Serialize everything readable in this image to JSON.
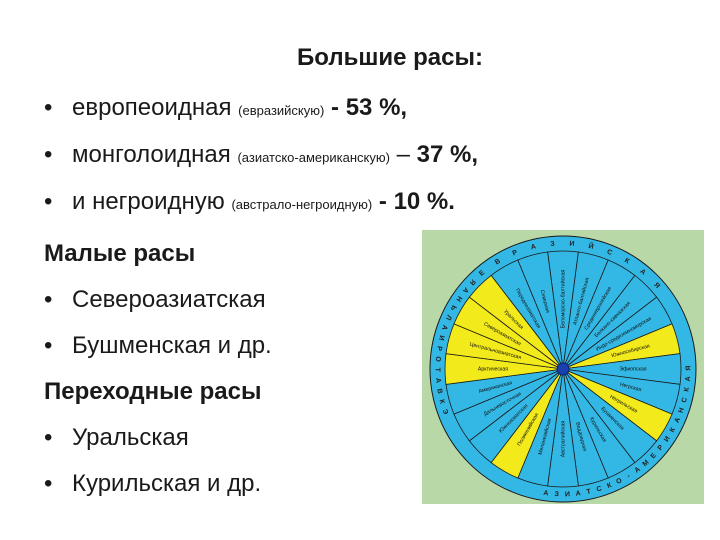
{
  "title": "Большие расы:",
  "big_races": [
    {
      "bullet": "•",
      "name": "европеоидная",
      "note": "(евразийскую)",
      "sep": "-",
      "percent": "53 %,"
    },
    {
      "bullet": "•",
      "name": "монголоидная",
      "note": "(азиатско-американскую)",
      "sep": "–",
      "percent": "37 %,"
    },
    {
      "bullet": "•",
      "name": "и негроидную",
      "note": "(австрало-негроидную)",
      "sep": "-",
      "percent": "10 %."
    }
  ],
  "small_heading": "Малые расы",
  "small_races": [
    {
      "bullet": "•",
      "name": "Североазиатская"
    },
    {
      "bullet": "•",
      "name": "Бушменская и др."
    }
  ],
  "transitional_heading": "Переходные расы",
  "transitional_races": [
    {
      "bullet": "•",
      "name": "Уральская"
    },
    {
      "bullet": "•",
      "name": "Курильская и др."
    }
  ],
  "diagram": {
    "colors": {
      "background": "#b8d8a8",
      "blue": "#33b8e6",
      "yellow": "#f2ea1a",
      "center": "#1a3fb0",
      "outline": "#1a1a1a"
    },
    "ring_eurasian": "ЕВРАЗИЙСКАЯ",
    "ring_asian_american": "АЗИАТСКО-АМЕРИКАНСКАЯ",
    "ring_australo_negroid": "ЭКВАТОРИАЛЬНАЯ",
    "sector_pattern": [
      "blue",
      "blue",
      "blue",
      "blue",
      "blue",
      "yellow",
      "blue",
      "blue",
      "yellow",
      "blue",
      "blue",
      "blue",
      "blue",
      "blue",
      "yellow",
      "blue",
      "blue",
      "blue",
      "yellow",
      "yellow",
      "yellow",
      "yellow",
      "blue",
      "blue"
    ],
    "sector_labels": [
      "Беломорско-балтийская",
      "Атланто-балтийская",
      "Среднеевропейская",
      "Балкано-кавказская",
      "Индо-средиземноморская",
      "Южносибирская",
      "Эфиопская",
      "Негрская",
      "Негрильская",
      "Бушменская",
      "Курильская",
      "Веддоидная",
      "Австралийская",
      "Меланезийская",
      "Полинезийская",
      "Южноазиатская",
      "Дальневосточная",
      "Американская",
      "Арктическая",
      "Центральноазиатская",
      "Североазиатская",
      "Уральская",
      "Переднеазиатская",
      "Северная"
    ]
  }
}
